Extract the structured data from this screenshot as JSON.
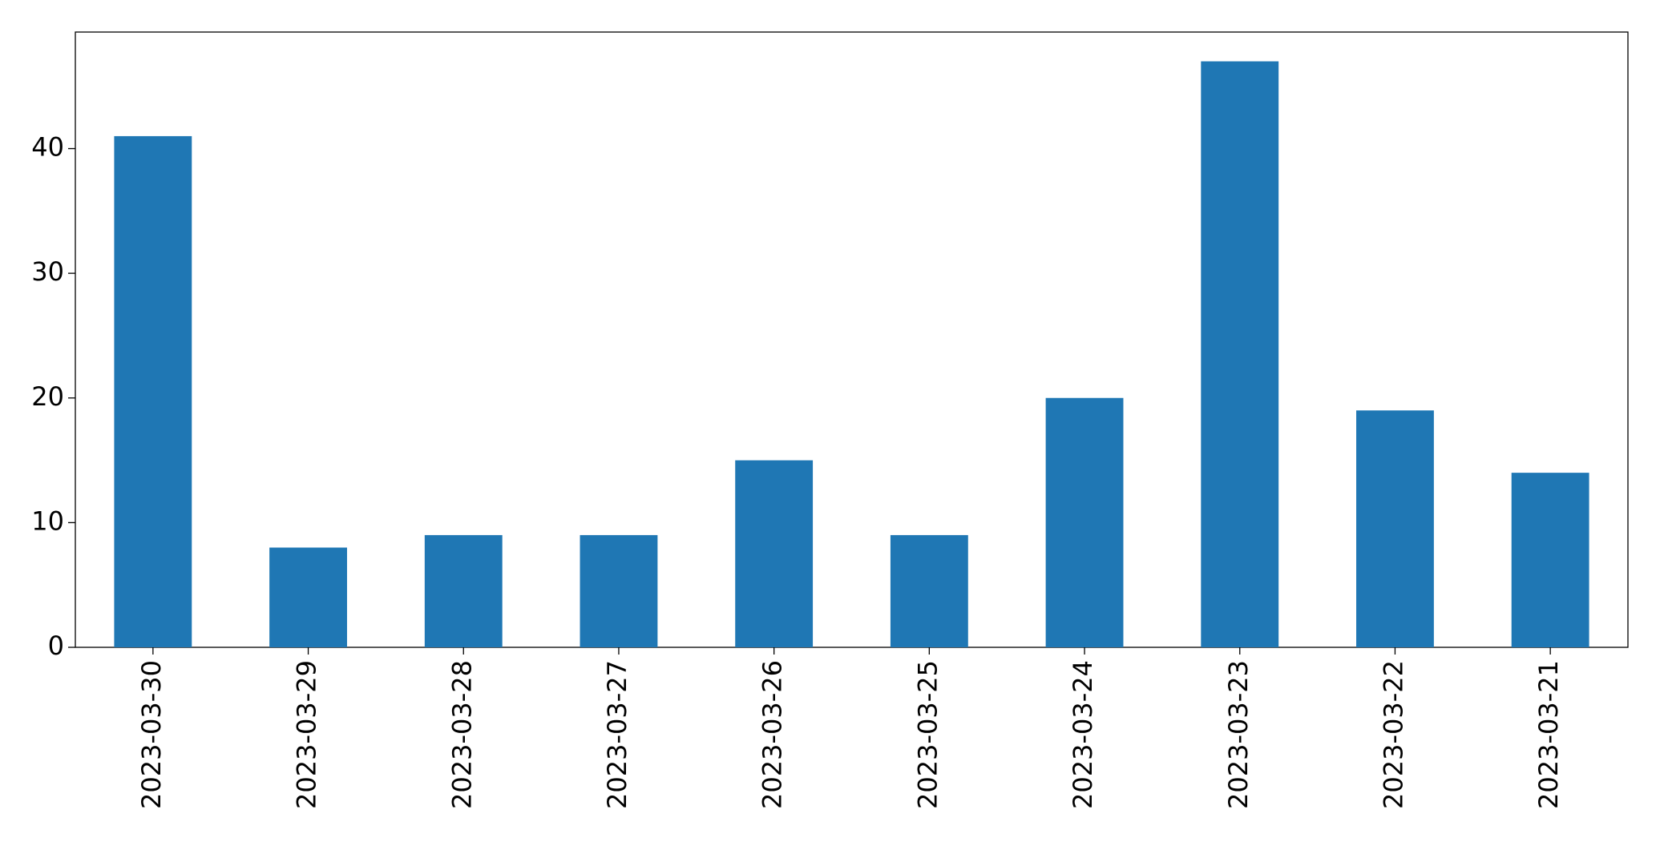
{
  "chart_data": {
    "type": "bar",
    "categories": [
      "2023-03-30",
      "2023-03-29",
      "2023-03-28",
      "2023-03-27",
      "2023-03-26",
      "2023-03-25",
      "2023-03-24",
      "2023-03-23",
      "2023-03-22",
      "2023-03-21"
    ],
    "values": [
      41,
      8,
      9,
      9,
      15,
      9,
      20,
      47,
      19,
      14
    ],
    "color": "#1f77b4",
    "ylim": [
      0,
      49.35
    ],
    "yticks": [
      0,
      10,
      20,
      30,
      40
    ],
    "grid": false
  }
}
